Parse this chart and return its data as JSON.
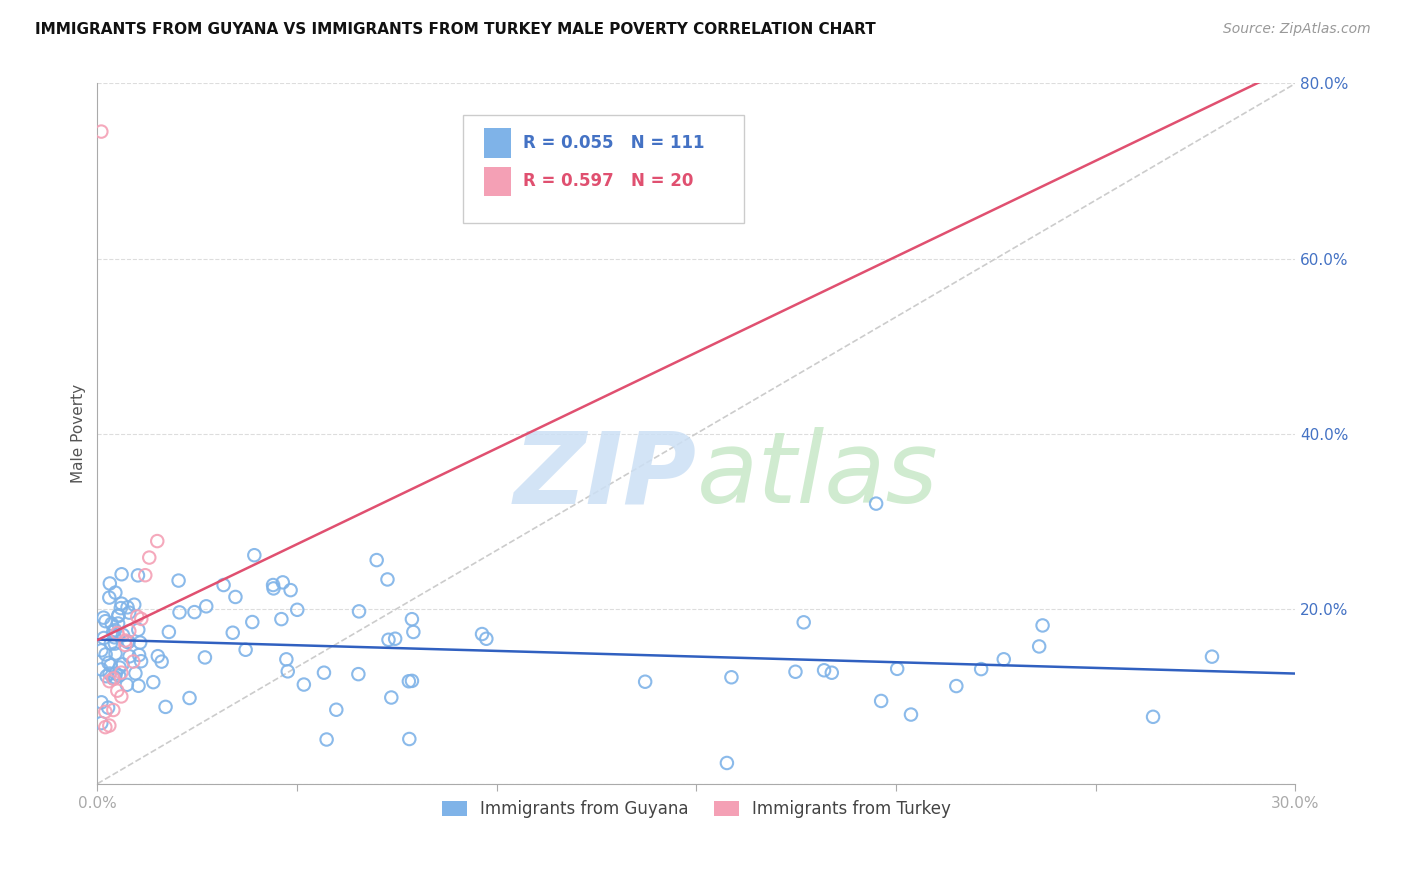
{
  "title": "IMMIGRANTS FROM GUYANA VS IMMIGRANTS FROM TURKEY MALE POVERTY CORRELATION CHART",
  "source": "Source: ZipAtlas.com",
  "ylabel": "Male Poverty",
  "x_min": 0.0,
  "x_max": 0.3,
  "y_min": 0.0,
  "y_max": 0.8,
  "guyana_color": "#7fb3e8",
  "turkey_color": "#f4a0b5",
  "guyana_line_color": "#3060c0",
  "turkey_line_color": "#e05070",
  "guyana_R": 0.055,
  "guyana_N": 111,
  "turkey_R": 0.597,
  "turkey_N": 20,
  "legend_labels": [
    "Immigrants from Guyana",
    "Immigrants from Turkey"
  ],
  "watermark_zip": "ZIP",
  "watermark_atlas": "atlas",
  "title_fontsize": 11,
  "source_fontsize": 10,
  "tick_fontsize": 11,
  "ylabel_fontsize": 11
}
